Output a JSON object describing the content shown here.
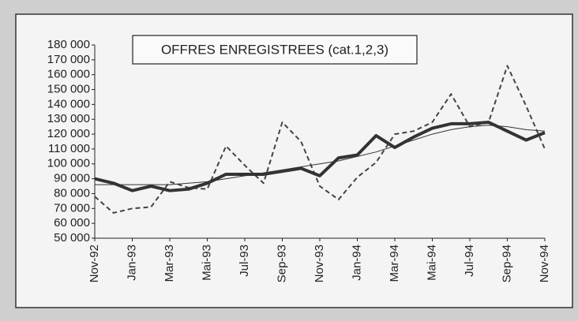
{
  "chart_data": {
    "type": "line",
    "title": "OFFRES ENREGISTREES (cat.1,2,3)",
    "categories": [
      "Nov-92",
      null,
      "Jan-93",
      null,
      "Mar-93",
      null,
      "Mai-93",
      null,
      "Jul-93",
      null,
      "Sep-93",
      null,
      "Nov-93",
      null,
      "Jan-94",
      null,
      "Mar-94",
      null,
      "Mai-94",
      null,
      "Jul-94",
      null,
      "Sep-94",
      null,
      "Nov-94"
    ],
    "series": [
      {
        "color": "#444444",
        "style": "dashed",
        "values": [
          78000,
          67000,
          70000,
          71000,
          88000,
          84000,
          83000,
          112000,
          99000,
          87000,
          128000,
          115000,
          85000,
          76000,
          91000,
          101000,
          120000,
          122000,
          128000,
          147000,
          125000,
          128000,
          166000,
          139000,
          110000
        ]
      },
      {
        "color": "#333333",
        "style": "thin",
        "values": [
          86000,
          86000,
          86000,
          86000,
          86000,
          87000,
          88000,
          90000,
          92000,
          94000,
          96000,
          98000,
          100000,
          102000,
          105000,
          108000,
          112000,
          116000,
          120000,
          123000,
          125000,
          126000,
          125000,
          123000,
          122000
        ]
      },
      {
        "color": "#333333",
        "style": "thick",
        "values": [
          90000,
          87000,
          82000,
          85000,
          82000,
          83000,
          87000,
          93000,
          93000,
          93000,
          95000,
          97000,
          92000,
          104000,
          106000,
          119000,
          111000,
          118000,
          124000,
          127000,
          127000,
          128000,
          122000,
          116000,
          121000
        ]
      }
    ],
    "ylim": [
      50000,
      180000
    ],
    "yticks": [
      {
        "value": 50000,
        "label": "50 000"
      },
      {
        "value": 60000,
        "label": "60 000"
      },
      {
        "value": 70000,
        "label": "70 000"
      },
      {
        "value": 80000,
        "label": "80 000"
      },
      {
        "value": 90000,
        "label": "90 000"
      },
      {
        "value": 100000,
        "label": "100 000"
      },
      {
        "value": 110000,
        "label": "110 000"
      },
      {
        "value": 120000,
        "label": "120 000"
      },
      {
        "value": 130000,
        "label": "130 000"
      },
      {
        "value": 140000,
        "label": "140 000"
      },
      {
        "value": 150000,
        "label": "150 000"
      },
      {
        "value": 160000,
        "label": "160 000"
      },
      {
        "value": 170000,
        "label": "170 000"
      },
      {
        "value": 180000,
        "label": "180 000"
      }
    ]
  }
}
